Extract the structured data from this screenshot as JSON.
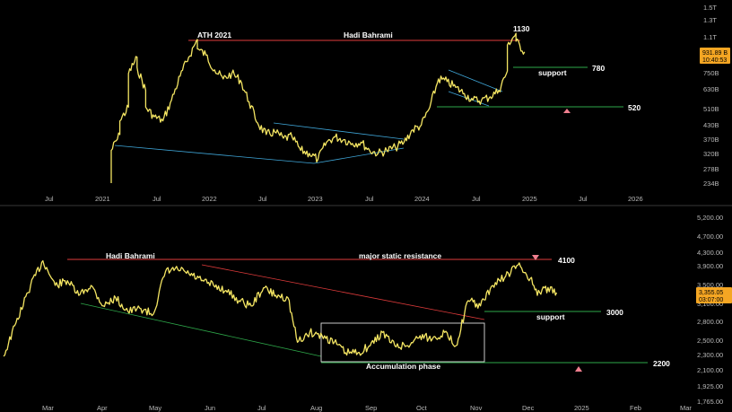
{
  "colors": {
    "price_line": "#f5e663",
    "red_line": "#e03b3b",
    "green_line": "#2ea84a",
    "blue_line": "#3fa6d8",
    "white_box": "#dddddd",
    "axis_text": "#b8b8b8",
    "current_tag": "#f5a623",
    "marker": "#f07f8f"
  },
  "chart_data": [
    {
      "type": "line",
      "scale": "log",
      "x_ticks": [
        "Jul",
        "2021",
        "Jul",
        "2022",
        "Jul",
        "2023",
        "Jul",
        "2024",
        "Jul",
        "2025",
        "Jul",
        "2026"
      ],
      "y_ticks": [
        "1.5T",
        "1.3T",
        "1.1T",
        "930.000B",
        "750B",
        "630B",
        "510B",
        "430B",
        "370B",
        "320B",
        "278B",
        "234B"
      ],
      "current_price": "931.89 B",
      "current_time": "10:40:53",
      "annotations": {
        "ath": "ATH 2021",
        "author": "Hadi Bahrami",
        "peak": "1130",
        "support": "support",
        "level_780": "780",
        "level_520": "520"
      },
      "series": [
        {
          "values": [
            [
              "2021-01",
              234
            ],
            [
              "2021-01",
              330
            ],
            [
              "2021-02",
              390
            ],
            [
              "2021-02",
              450
            ],
            [
              "2021-03",
              520
            ],
            [
              "2021-03",
              740
            ],
            [
              "2021-04",
              880
            ],
            [
              "2021-04",
              790
            ],
            [
              "2021-05",
              620
            ],
            [
              "2021-05",
              520
            ],
            [
              "2021-06",
              470
            ],
            [
              "2021-07",
              450
            ],
            [
              "2021-08",
              560
            ],
            [
              "2021-09",
              720
            ],
            [
              "2021-10",
              880
            ],
            [
              "2021-11",
              1060
            ],
            [
              "2021-11",
              960
            ],
            [
              "2021-12",
              900
            ],
            [
              "2022-01",
              770
            ],
            [
              "2022-02",
              700
            ],
            [
              "2022-03",
              740
            ],
            [
              "2022-04",
              690
            ],
            [
              "2022-05",
              550
            ],
            [
              "2022-06",
              440
            ],
            [
              "2022-07",
              390
            ],
            [
              "2022-08",
              400
            ],
            [
              "2022-09",
              375
            ],
            [
              "2022-10",
              380
            ],
            [
              "2022-11",
              330
            ],
            [
              "2022-12",
              320
            ],
            [
              "2023-01",
              300
            ],
            [
              "2023-02",
              360
            ],
            [
              "2023-03",
              380
            ],
            [
              "2023-04",
              370
            ],
            [
              "2023-05",
              355
            ],
            [
              "2023-06",
              360
            ],
            [
              "2023-07",
              330
            ],
            [
              "2023-08",
              320
            ],
            [
              "2023-09",
              330
            ],
            [
              "2023-10",
              340
            ],
            [
              "2023-11",
              360
            ],
            [
              "2023-12",
              410
            ],
            [
              "2024-01",
              430
            ],
            [
              "2024-02",
              520
            ],
            [
              "2024-03",
              700
            ],
            [
              "2024-04",
              680
            ],
            [
              "2024-05",
              640
            ],
            [
              "2024-06",
              600
            ],
            [
              "2024-07",
              560
            ],
            [
              "2024-08",
              560
            ],
            [
              "2024-09",
              580
            ],
            [
              "2024-10",
              620
            ],
            [
              "2024-11",
              760
            ],
            [
              "2024-11",
              1000
            ],
            [
              "2024-12",
              1130
            ],
            [
              "2024-12",
              1040
            ],
            [
              "2025-01",
              930
            ]
          ]
        }
      ]
    },
    {
      "type": "line",
      "scale": "log",
      "x_ticks": [
        "Mar",
        "Apr",
        "May",
        "Jun",
        "Jul",
        "Aug",
        "Sep",
        "Oct",
        "Nov",
        "Dec",
        "2025",
        "Feb",
        "Mar"
      ],
      "y_ticks": [
        "5,200.00",
        "4,700.00",
        "4,300.00",
        "3,900.00",
        "3,500.00",
        "3,100.00",
        "2,800.00",
        "2,500.00",
        "2,300.00",
        "2,100.00",
        "1,925.00",
        "1,765.00"
      ],
      "current_price": "3,355.05",
      "current_time": "03:07:00",
      "annotations": {
        "author": "Hadi Bahrami",
        "resistance": "major static resistance",
        "level_4100": "4100",
        "support": "support",
        "level_3000": "3000",
        "accumulation": "Accumulation phase",
        "level_2200": "2200"
      },
      "series": [
        {
          "values": [
            [
              "2024-02-20",
              2300
            ],
            [
              "2024-02-27",
              2800
            ],
            [
              "2024-03-05",
              3500
            ],
            [
              "2024-03-12",
              4050
            ],
            [
              "2024-03-19",
              3500
            ],
            [
              "2024-03-26",
              3600
            ],
            [
              "2024-04-02",
              3300
            ],
            [
              "2024-04-09",
              3500
            ],
            [
              "2024-04-16",
              3100
            ],
            [
              "2024-04-23",
              3250
            ],
            [
              "2024-04-30",
              3000
            ],
            [
              "2024-05-07",
              3050
            ],
            [
              "2024-05-14",
              2950
            ],
            [
              "2024-05-21",
              3800
            ],
            [
              "2024-05-28",
              3850
            ],
            [
              "2024-06-04",
              3750
            ],
            [
              "2024-06-11",
              3600
            ],
            [
              "2024-06-18",
              3500
            ],
            [
              "2024-06-25",
              3400
            ],
            [
              "2024-07-02",
              3200
            ],
            [
              "2024-07-09",
              3100
            ],
            [
              "2024-07-16",
              3450
            ],
            [
              "2024-07-23",
              3300
            ],
            [
              "2024-07-30",
              3250
            ],
            [
              "2024-08-05",
              2500
            ],
            [
              "2024-08-12",
              2650
            ],
            [
              "2024-08-19",
              2600
            ],
            [
              "2024-08-26",
              2500
            ],
            [
              "2024-09-02",
              2350
            ],
            [
              "2024-09-09",
              2350
            ],
            [
              "2024-09-16",
              2450
            ],
            [
              "2024-09-23",
              2650
            ],
            [
              "2024-09-30",
              2450
            ],
            [
              "2024-10-07",
              2450
            ],
            [
              "2024-10-14",
              2600
            ],
            [
              "2024-10-21",
              2550
            ],
            [
              "2024-10-28",
              2650
            ],
            [
              "2024-11-04",
              2450
            ],
            [
              "2024-11-11",
              3200
            ],
            [
              "2024-11-18",
              3100
            ],
            [
              "2024-11-25",
              3500
            ],
            [
              "2024-12-02",
              3700
            ],
            [
              "2024-12-09",
              3950
            ],
            [
              "2024-12-16",
              3650
            ],
            [
              "2024-12-20",
              3300
            ],
            [
              "2024-12-24",
              3450
            ],
            [
              "2024-12-31",
              3355
            ]
          ]
        }
      ]
    }
  ]
}
